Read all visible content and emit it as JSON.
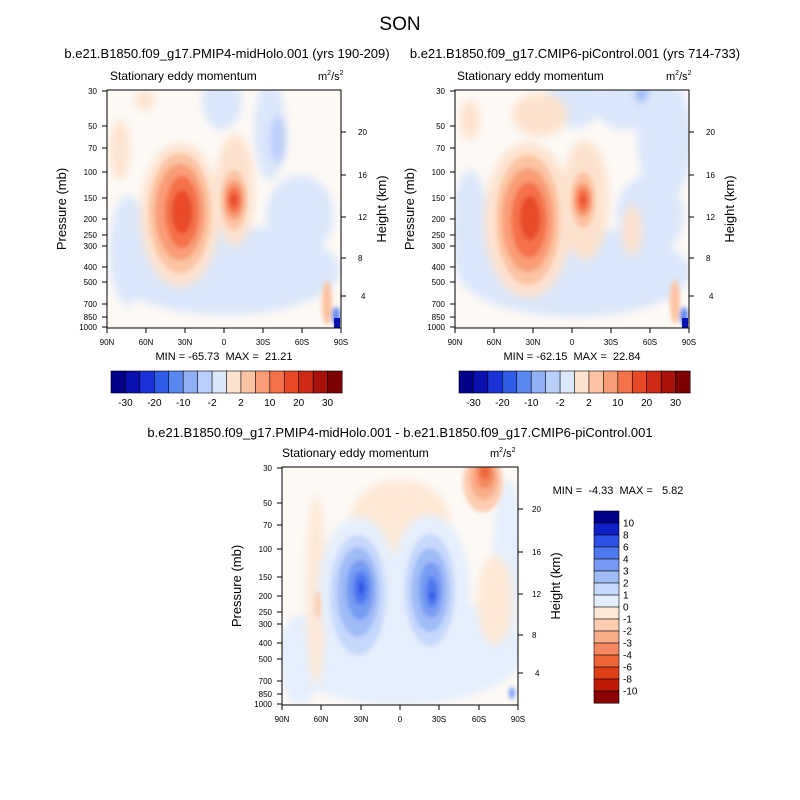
{
  "figure": {
    "season": "SON",
    "panel_title": "Stationary eddy momentum",
    "units_base": "m",
    "units_sup": "2",
    "units_sep": "/s",
    "units_sup2": "2",
    "ylabel_left": "Pressure (mb)",
    "ylabel_right": "Height (km)"
  },
  "colors": {
    "tl_palette": [
      "#00008b",
      "#0a0fb0",
      "#1933d9",
      "#2e5ce6",
      "#5a87ef",
      "#8fb0f5",
      "#b9cef9",
      "#dbe7fb",
      "#fde3cf",
      "#fcc3a2",
      "#f99d77",
      "#f4714a",
      "#e84a28",
      "#cf2a14",
      "#a8120a",
      "#7c0000"
    ],
    "tl_labels": [
      "-30",
      "-20",
      "-10",
      "-2",
      "2",
      "10",
      "20",
      "30"
    ],
    "diff_palette": [
      "#00008b",
      "#1020c8",
      "#2e4fe6",
      "#4f78ee",
      "#779bf3",
      "#9fbcf7",
      "#c6d8fb",
      "#e4eefc",
      "#fde8d6",
      "#fccdb0",
      "#f9ad89",
      "#f58860",
      "#ee6537",
      "#df3f16",
      "#c01a06",
      "#8b0000"
    ],
    "diff_labels": [
      "10",
      "8",
      "6",
      "4",
      "3",
      "2",
      "1",
      "0",
      "-1",
      "-2",
      "-3",
      "-4",
      "-6",
      "-8",
      "-10"
    ]
  },
  "chart_data": [
    {
      "type": "contour",
      "id": "top-left",
      "title": "b.e21.B1850.f09_g17.PMIP4-midHolo.001 (yrs 190-209)",
      "subtitle_left": "Stationary eddy momentum",
      "stats": "MIN = -65.73  MAX =  21.21",
      "x_ticks": [
        "90N",
        "60N",
        "30N",
        "0",
        "30S",
        "60S",
        "90S"
      ],
      "y_ticks_pressure": [
        "30",
        "50",
        "70",
        "100",
        "150",
        "200",
        "250",
        "300",
        "400",
        "500",
        "700",
        "850",
        "1000"
      ],
      "y_ticks_height": [
        "20",
        "16",
        "12",
        "8",
        "4"
      ],
      "contour_levels": [
        -30,
        -20,
        -10,
        -2,
        2,
        10,
        20,
        30
      ],
      "features": [
        {
          "lat": 30,
          "pressure": 200,
          "sign": "positive",
          "approx_max": 21.21
        },
        {
          "lat": -5,
          "pressure": 150,
          "sign": "positive"
        },
        {
          "lat": -80,
          "pressure": 900,
          "sign": "negative",
          "approx_min": -65.73
        }
      ]
    },
    {
      "type": "contour",
      "id": "top-right",
      "title": "b.e21.B1850.f09_g17.CMIP6-piControl.001 (yrs 714-733)",
      "subtitle_left": "Stationary eddy momentum",
      "stats": "MIN = -62.15  MAX =  22.84",
      "x_ticks": [
        "90N",
        "60N",
        "30N",
        "0",
        "30S",
        "60S",
        "90S"
      ],
      "y_ticks_pressure": [
        "30",
        "50",
        "70",
        "100",
        "150",
        "200",
        "250",
        "300",
        "400",
        "500",
        "700",
        "850",
        "1000"
      ],
      "y_ticks_height": [
        "20",
        "16",
        "12",
        "8",
        "4"
      ],
      "contour_levels": [
        -30,
        -20,
        -10,
        -2,
        2,
        10,
        20,
        30
      ],
      "features": [
        {
          "lat": 30,
          "pressure": 220,
          "sign": "positive",
          "approx_max": 22.84
        },
        {
          "lat": 5,
          "pressure": 150,
          "sign": "positive"
        },
        {
          "lat": -80,
          "pressure": 900,
          "sign": "negative",
          "approx_min": -62.15
        }
      ]
    },
    {
      "type": "contour",
      "id": "difference",
      "title": "b.e21.B1850.f09_g17.PMIP4-midHolo.001 - b.e21.B1850.f09_g17.CMIP6-piControl.001",
      "subtitle_left": "Stationary eddy momentum",
      "stats": "MIN =  -4.33  MAX =   5.82",
      "x_ticks": [
        "90N",
        "60N",
        "30N",
        "0",
        "30S",
        "60S",
        "90S"
      ],
      "y_ticks_pressure": [
        "30",
        "50",
        "70",
        "100",
        "150",
        "200",
        "250",
        "300",
        "400",
        "500",
        "700",
        "850",
        "1000"
      ],
      "y_ticks_height": [
        "20",
        "16",
        "12",
        "8",
        "4"
      ],
      "contour_levels": [
        -10,
        -8,
        -6,
        -4,
        -3,
        -2,
        -1,
        0,
        1,
        2,
        3,
        4,
        6,
        8,
        10
      ],
      "features": [
        {
          "lat": 33,
          "pressure": 200,
          "sign": "negative",
          "approx_min": -4.33
        },
        {
          "lat": -28,
          "pressure": 200,
          "sign": "negative"
        },
        {
          "lat": -68,
          "pressure": 35,
          "sign": "positive",
          "approx_max": 5.82
        }
      ]
    }
  ]
}
